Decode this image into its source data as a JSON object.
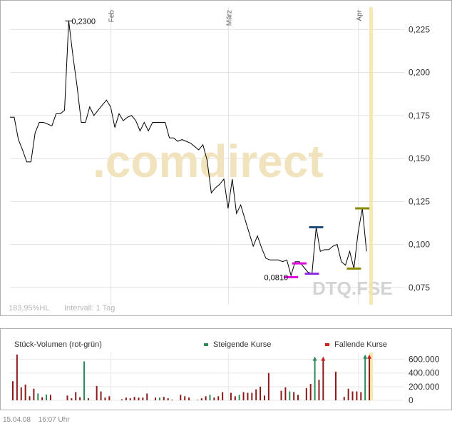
{
  "chart_data": [
    {
      "type": "line",
      "title": "",
      "watermark": ".comdirect",
      "symbol_watermark": "DTQ.FSE",
      "x_labels": [
        {
          "label": "Feb",
          "x": 24
        },
        {
          "label": "März",
          "x": 52
        },
        {
          "label": "Apr",
          "x": 83
        }
      ],
      "xlim": [
        0,
        94
      ],
      "ylim": [
        0.065,
        0.238
      ],
      "y_ticks": [
        0.075,
        0.1,
        0.125,
        0.15,
        0.175,
        0.2,
        0.225
      ],
      "y_tick_labels": [
        "0,075",
        "0,100",
        "0,125",
        "0,150",
        "0,175",
        "0,200",
        "0,225"
      ],
      "grid": true,
      "series": [
        {
          "values": [
            [
              0,
              0.174
            ],
            [
              1,
              0.174
            ],
            [
              2,
              0.161
            ],
            [
              3,
              0.155
            ],
            [
              4,
              0.148
            ],
            [
              5,
              0.148
            ],
            [
              6,
              0.165
            ],
            [
              7,
              0.171
            ],
            [
              8,
              0.171
            ],
            [
              9,
              0.17
            ],
            [
              10,
              0.169
            ],
            [
              11,
              0.176
            ],
            [
              12,
              0.176
            ],
            [
              13,
              0.178
            ],
            [
              14,
              0.23
            ],
            [
              15,
              0.21
            ],
            [
              16,
              0.192
            ],
            [
              17,
              0.171
            ],
            [
              18,
              0.171
            ],
            [
              19,
              0.18
            ],
            [
              20,
              0.175
            ],
            [
              21,
              0.178
            ],
            [
              22,
              0.181
            ],
            [
              23,
              0.184
            ],
            [
              24,
              0.18
            ],
            [
              25,
              0.168
            ],
            [
              26,
              0.176
            ],
            [
              27,
              0.172
            ],
            [
              28,
              0.174
            ],
            [
              29,
              0.175
            ],
            [
              30,
              0.172
            ],
            [
              31,
              0.166
            ],
            [
              32,
              0.171
            ],
            [
              33,
              0.166
            ],
            [
              34,
              0.171
            ],
            [
              35,
              0.171
            ],
            [
              36,
              0.171
            ],
            [
              37,
              0.171
            ],
            [
              38,
              0.162
            ],
            [
              39,
              0.162
            ],
            [
              40,
              0.16
            ],
            [
              41,
              0.161
            ],
            [
              42,
              0.16
            ],
            [
              43,
              0.159
            ],
            [
              44,
              0.157
            ],
            [
              45,
              0.155
            ],
            [
              46,
              0.158
            ],
            [
              47,
              0.149
            ],
            [
              48,
              0.13
            ],
            [
              49,
              0.133
            ],
            [
              50,
              0.135
            ],
            [
              51,
              0.138
            ],
            [
              52,
              0.121
            ],
            [
              53,
              0.138
            ],
            [
              54,
              0.118
            ],
            [
              55,
              0.123
            ],
            [
              56,
              0.115
            ],
            [
              57,
              0.107
            ],
            [
              58,
              0.099
            ],
            [
              59,
              0.105
            ],
            [
              60,
              0.098
            ],
            [
              61,
              0.092
            ],
            [
              62,
              0.091
            ],
            [
              63,
              0.091
            ],
            [
              64,
              0.091
            ],
            [
              65,
              0.09
            ],
            [
              66,
              0.091
            ],
            [
              67,
              0.082
            ],
            [
              68,
              0.09
            ],
            [
              69,
              0.09
            ],
            [
              70,
              0.087
            ],
            [
              71,
              0.084
            ],
            [
              72,
              0.083
            ],
            [
              73,
              0.11
            ],
            [
              74,
              0.096
            ],
            [
              75,
              0.097
            ],
            [
              76,
              0.097
            ],
            [
              77,
              0.099
            ],
            [
              78,
              0.1
            ],
            [
              79,
              0.09
            ],
            [
              80,
              0.088
            ],
            [
              81,
              0.096
            ],
            [
              82,
              0.086
            ],
            [
              83,
              0.107
            ],
            [
              84,
              0.121
            ],
            [
              85,
              0.096
            ]
          ]
        }
      ],
      "annotations": [
        {
          "label": "0,2300",
          "x": 14,
          "y": 0.23
        },
        {
          "label": "0,0810",
          "x": 67,
          "y": 0.081
        }
      ],
      "markers": [
        {
          "x": 67,
          "y": 0.081,
          "color": "#e000e0"
        },
        {
          "x": 69,
          "y": 0.089,
          "color": "#e000e0"
        },
        {
          "x": 72,
          "y": 0.083,
          "color": "#8a2be2"
        },
        {
          "x": 73,
          "y": 0.11,
          "color": "#1f4e79"
        },
        {
          "x": 82,
          "y": 0.086,
          "color": "#8a8a00"
        },
        {
          "x": 84,
          "y": 0.121,
          "color": "#8a8a00"
        }
      ],
      "current_marker_x": 86,
      "footer_left": "183,95%HL",
      "footer_interval": "Intervall: 1 Tag"
    },
    {
      "type": "bar",
      "title": "Stück-Volumen (rot-grün)",
      "legend": [
        {
          "label": "Steigende Kurse",
          "color": "#2e8b57"
        },
        {
          "label": "Fallende Kurse",
          "color": "#cc2222"
        }
      ],
      "ylim": [
        0,
        700000
      ],
      "y_ticks": [
        0,
        200000,
        400000,
        600000
      ],
      "y_tick_labels": [
        "0",
        "200.000",
        "400.000",
        "600.000"
      ],
      "bar_colors": {
        "up": "#2e8b57",
        "down": "#8b1a1a"
      },
      "values": [
        {
          "x": 0,
          "v": 280000,
          "c": "down"
        },
        {
          "x": 1,
          "v": 670000,
          "c": "down"
        },
        {
          "x": 2,
          "v": 190000,
          "c": "down"
        },
        {
          "x": 3,
          "v": 230000,
          "c": "down"
        },
        {
          "x": 4,
          "v": 60000,
          "c": "down"
        },
        {
          "x": 5,
          "v": 170000,
          "c": "down"
        },
        {
          "x": 6,
          "v": 100000,
          "c": "up"
        },
        {
          "x": 7,
          "v": 45000,
          "c": "down"
        },
        {
          "x": 8,
          "v": 85000,
          "c": "up"
        },
        {
          "x": 9,
          "v": 80000,
          "c": "down"
        },
        {
          "x": 13,
          "v": 70000,
          "c": "down"
        },
        {
          "x": 14,
          "v": 30000,
          "c": "down"
        },
        {
          "x": 15,
          "v": 120000,
          "c": "down"
        },
        {
          "x": 16,
          "v": 45000,
          "c": "down"
        },
        {
          "x": 17,
          "v": 570000,
          "c": "up"
        },
        {
          "x": 18,
          "v": 30000,
          "c": "down"
        },
        {
          "x": 20,
          "v": 210000,
          "c": "down"
        },
        {
          "x": 21,
          "v": 130000,
          "c": "down"
        },
        {
          "x": 22,
          "v": 40000,
          "c": "down"
        },
        {
          "x": 23,
          "v": 60000,
          "c": "down"
        },
        {
          "x": 26,
          "v": 15000,
          "c": "down"
        },
        {
          "x": 27,
          "v": 40000,
          "c": "down"
        },
        {
          "x": 28,
          "v": 30000,
          "c": "down"
        },
        {
          "x": 29,
          "v": 50000,
          "c": "down"
        },
        {
          "x": 30,
          "v": 40000,
          "c": "down"
        },
        {
          "x": 31,
          "v": 40000,
          "c": "down"
        },
        {
          "x": 32,
          "v": 100000,
          "c": "down"
        },
        {
          "x": 34,
          "v": 40000,
          "c": "down"
        },
        {
          "x": 35,
          "v": 40000,
          "c": "up"
        },
        {
          "x": 36,
          "v": 50000,
          "c": "down"
        },
        {
          "x": 37,
          "v": 30000,
          "c": "down"
        },
        {
          "x": 38,
          "v": 10000,
          "c": "down"
        },
        {
          "x": 40,
          "v": 80000,
          "c": "down"
        },
        {
          "x": 41,
          "v": 60000,
          "c": "down"
        },
        {
          "x": 42,
          "v": 40000,
          "c": "down"
        },
        {
          "x": 44,
          "v": 10000,
          "c": "up"
        },
        {
          "x": 45,
          "v": 30000,
          "c": "down"
        },
        {
          "x": 46,
          "v": 60000,
          "c": "down"
        },
        {
          "x": 47,
          "v": 80000,
          "c": "up"
        },
        {
          "x": 48,
          "v": 40000,
          "c": "down"
        },
        {
          "x": 49,
          "v": 60000,
          "c": "down"
        },
        {
          "x": 50,
          "v": 120000,
          "c": "down"
        },
        {
          "x": 52,
          "v": 110000,
          "c": "down"
        },
        {
          "x": 53,
          "v": 60000,
          "c": "down"
        },
        {
          "x": 54,
          "v": 80000,
          "c": "up"
        },
        {
          "x": 55,
          "v": 120000,
          "c": "down"
        },
        {
          "x": 56,
          "v": 110000,
          "c": "down"
        },
        {
          "x": 57,
          "v": 110000,
          "c": "down"
        },
        {
          "x": 58,
          "v": 160000,
          "c": "down"
        },
        {
          "x": 59,
          "v": 200000,
          "c": "down"
        },
        {
          "x": 60,
          "v": 70000,
          "c": "down"
        },
        {
          "x": 61,
          "v": 400000,
          "c": "down"
        },
        {
          "x": 64,
          "v": 140000,
          "c": "down"
        },
        {
          "x": 65,
          "v": 190000,
          "c": "down"
        },
        {
          "x": 66,
          "v": 130000,
          "c": "up"
        },
        {
          "x": 67,
          "v": 120000,
          "c": "down"
        },
        {
          "x": 68,
          "v": 80000,
          "c": "down"
        },
        {
          "x": 70,
          "v": 180000,
          "c": "down"
        },
        {
          "x": 71,
          "v": 240000,
          "c": "down"
        },
        {
          "x": 72,
          "v": 620000,
          "c": "up"
        },
        {
          "x": 73,
          "v": 300000,
          "c": "down"
        },
        {
          "x": 74,
          "v": 620000,
          "c": "down"
        },
        {
          "x": 77,
          "v": 420000,
          "c": "down"
        },
        {
          "x": 79,
          "v": 50000,
          "c": "down"
        },
        {
          "x": 80,
          "v": 170000,
          "c": "down"
        },
        {
          "x": 81,
          "v": 130000,
          "c": "down"
        },
        {
          "x": 82,
          "v": 130000,
          "c": "down"
        },
        {
          "x": 83,
          "v": 120000,
          "c": "down"
        },
        {
          "x": 84,
          "v": 650000,
          "c": "up"
        },
        {
          "x": 85,
          "v": 650000,
          "c": "down"
        }
      ]
    }
  ],
  "footer": {
    "date": "15.04.08",
    "time": "16:07 Uhr"
  }
}
